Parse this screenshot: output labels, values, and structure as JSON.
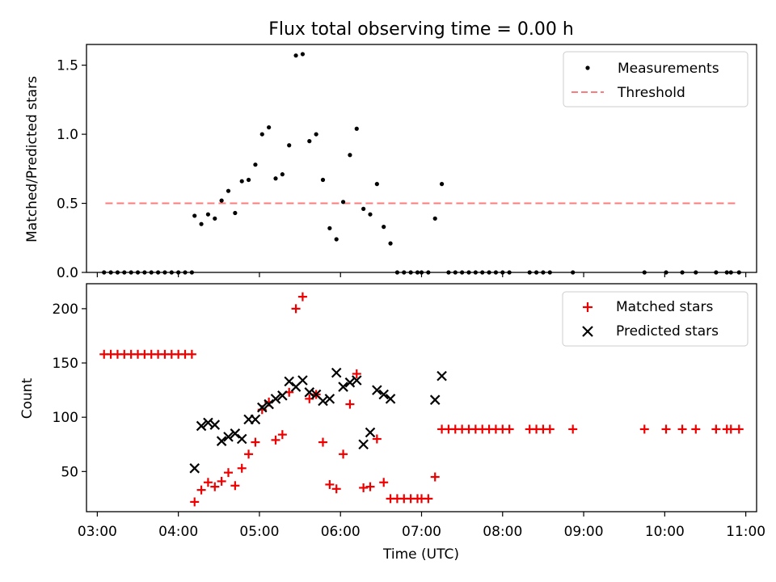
{
  "figure": {
    "title": "Flux total observing time = 0.00 h"
  },
  "chart_data": [
    {
      "type": "scatter",
      "ylabel": "Matched/Predicted stars",
      "xlabel": "",
      "xlim": [
        "03:00",
        "11:00"
      ],
      "ylim": [
        0,
        1.65
      ],
      "yticks": [
        0.0,
        0.5,
        1.0,
        1.5
      ],
      "ytick_labels": [
        "0.0",
        "0.5",
        "1.0",
        "1.5"
      ],
      "legend": {
        "placement": "top-right",
        "entries": [
          "Measurements",
          "Threshold"
        ]
      },
      "colors": {
        "measurements": "#000000",
        "threshold": "#ff7b7b"
      },
      "series": [
        {
          "name": "Measurements",
          "marker": "dot",
          "points": [
            [
              "03:05",
              0
            ],
            [
              "03:10",
              0
            ],
            [
              "03:15",
              0
            ],
            [
              "03:20",
              0
            ],
            [
              "03:25",
              0
            ],
            [
              "03:30",
              0
            ],
            [
              "03:35",
              0
            ],
            [
              "03:40",
              0
            ],
            [
              "03:45",
              0
            ],
            [
              "03:50",
              0
            ],
            [
              "03:55",
              0
            ],
            [
              "04:00",
              0
            ],
            [
              "04:05",
              0
            ],
            [
              "04:10",
              0
            ],
            [
              "04:12",
              0.41
            ],
            [
              "04:17",
              0.35
            ],
            [
              "04:22",
              0.42
            ],
            [
              "04:27",
              0.39
            ],
            [
              "04:32",
              0.52
            ],
            [
              "04:37",
              0.59
            ],
            [
              "04:42",
              0.43
            ],
            [
              "04:47",
              0.66
            ],
            [
              "04:52",
              0.67
            ],
            [
              "04:57",
              0.78
            ],
            [
              "05:02",
              1.0
            ],
            [
              "05:07",
              1.05
            ],
            [
              "05:12",
              0.68
            ],
            [
              "05:17",
              0.71
            ],
            [
              "05:22",
              0.92
            ],
            [
              "05:27",
              1.57
            ],
            [
              "05:32",
              1.58
            ],
            [
              "05:37",
              0.95
            ],
            [
              "05:42",
              1.0
            ],
            [
              "05:47",
              0.67
            ],
            [
              "05:52",
              0.32
            ],
            [
              "05:57",
              0.24
            ],
            [
              "06:02",
              0.51
            ],
            [
              "06:07",
              0.85
            ],
            [
              "06:12",
              1.04
            ],
            [
              "06:17",
              0.46
            ],
            [
              "06:22",
              0.42
            ],
            [
              "06:27",
              0.64
            ],
            [
              "06:32",
              0.33
            ],
            [
              "06:37",
              0.21
            ],
            [
              "06:42",
              0
            ],
            [
              "06:47",
              0
            ],
            [
              "06:52",
              0
            ],
            [
              "06:57",
              0
            ],
            [
              "07:00",
              0
            ],
            [
              "07:05",
              0
            ],
            [
              "07:10",
              0.39
            ],
            [
              "07:15",
              0.64
            ],
            [
              "07:20",
              0
            ],
            [
              "07:25",
              0
            ],
            [
              "07:30",
              0
            ],
            [
              "07:35",
              0
            ],
            [
              "07:40",
              0
            ],
            [
              "07:45",
              0
            ],
            [
              "07:50",
              0
            ],
            [
              "07:55",
              0
            ],
            [
              "08:00",
              0
            ],
            [
              "08:05",
              0
            ],
            [
              "08:20",
              0
            ],
            [
              "08:25",
              0
            ],
            [
              "08:30",
              0
            ],
            [
              "08:35",
              0
            ],
            [
              "08:52",
              0
            ],
            [
              "09:45",
              0
            ],
            [
              "10:01",
              0
            ],
            [
              "10:13",
              0
            ],
            [
              "10:23",
              0
            ],
            [
              "10:38",
              0
            ],
            [
              "10:46",
              0
            ],
            [
              "10:49",
              0
            ],
            [
              "10:55",
              0
            ]
          ]
        },
        {
          "name": "Threshold",
          "style": "dashed",
          "points": [
            [
              "03:06",
              0.5
            ],
            [
              "10:55",
              0.5
            ]
          ]
        }
      ]
    },
    {
      "type": "scatter",
      "xlabel": "Time (UTC)",
      "ylabel": "Count",
      "xlim": [
        "03:00",
        "11:00"
      ],
      "ylim": [
        13,
        223
      ],
      "yticks": [
        50,
        100,
        150,
        200
      ],
      "ytick_labels": [
        "50",
        "100",
        "150",
        "200"
      ],
      "xticks": [
        "03:00",
        "04:00",
        "05:00",
        "06:00",
        "07:00",
        "08:00",
        "09:00",
        "10:00",
        "11:00"
      ],
      "legend": {
        "placement": "top-right",
        "entries": [
          "Matched stars",
          "Predicted stars"
        ]
      },
      "colors": {
        "matched": "#ee0000",
        "predicted": "#000000"
      },
      "series": [
        {
          "name": "Matched stars",
          "marker": "plus",
          "points": [
            [
              "03:05",
              158
            ],
            [
              "03:10",
              158
            ],
            [
              "03:15",
              158
            ],
            [
              "03:20",
              158
            ],
            [
              "03:25",
              158
            ],
            [
              "03:30",
              158
            ],
            [
              "03:35",
              158
            ],
            [
              "03:40",
              158
            ],
            [
              "03:45",
              158
            ],
            [
              "03:50",
              158
            ],
            [
              "03:55",
              158
            ],
            [
              "04:00",
              158
            ],
            [
              "04:05",
              158
            ],
            [
              "04:10",
              158
            ],
            [
              "04:12",
              22
            ],
            [
              "04:17",
              33
            ],
            [
              "04:22",
              40
            ],
            [
              "04:27",
              36
            ],
            [
              "04:32",
              41
            ],
            [
              "04:37",
              49
            ],
            [
              "04:42",
              37
            ],
            [
              "04:47",
              53
            ],
            [
              "04:52",
              66
            ],
            [
              "04:57",
              77
            ],
            [
              "05:02",
              107
            ],
            [
              "05:07",
              114
            ],
            [
              "05:12",
              79
            ],
            [
              "05:17",
              84
            ],
            [
              "05:22",
              123
            ],
            [
              "05:27",
              200
            ],
            [
              "05:32",
              211
            ],
            [
              "05:37",
              117
            ],
            [
              "05:42",
              121
            ],
            [
              "05:47",
              77
            ],
            [
              "05:52",
              38
            ],
            [
              "05:57",
              34
            ],
            [
              "06:02",
              66
            ],
            [
              "06:07",
              112
            ],
            [
              "06:12",
              140
            ],
            [
              "06:17",
              35
            ],
            [
              "06:22",
              36
            ],
            [
              "06:27",
              80
            ],
            [
              "06:32",
              40
            ],
            [
              "06:37",
              25
            ],
            [
              "06:42",
              25
            ],
            [
              "06:47",
              25
            ],
            [
              "06:52",
              25
            ],
            [
              "06:57",
              25
            ],
            [
              "07:00",
              25
            ],
            [
              "07:05",
              25
            ],
            [
              "07:10",
              45
            ],
            [
              "07:15",
              89
            ],
            [
              "07:20",
              89
            ],
            [
              "07:25",
              89
            ],
            [
              "07:30",
              89
            ],
            [
              "07:35",
              89
            ],
            [
              "07:40",
              89
            ],
            [
              "07:45",
              89
            ],
            [
              "07:50",
              89
            ],
            [
              "07:55",
              89
            ],
            [
              "08:00",
              89
            ],
            [
              "08:05",
              89
            ],
            [
              "08:20",
              89
            ],
            [
              "08:25",
              89
            ],
            [
              "08:30",
              89
            ],
            [
              "08:35",
              89
            ],
            [
              "08:52",
              89
            ],
            [
              "09:45",
              89
            ],
            [
              "10:01",
              89
            ],
            [
              "10:13",
              89
            ],
            [
              "10:23",
              89
            ],
            [
              "10:38",
              89
            ],
            [
              "10:46",
              89
            ],
            [
              "10:49",
              89
            ],
            [
              "10:55",
              89
            ]
          ]
        },
        {
          "name": "Predicted stars",
          "marker": "x",
          "points": [
            [
              "04:12",
              53
            ],
            [
              "04:17",
              92
            ],
            [
              "04:22",
              95
            ],
            [
              "04:27",
              93
            ],
            [
              "04:32",
              78
            ],
            [
              "04:37",
              82
            ],
            [
              "04:42",
              85
            ],
            [
              "04:47",
              80
            ],
            [
              "04:52",
              98
            ],
            [
              "04:57",
              98
            ],
            [
              "05:02",
              109
            ],
            [
              "05:07",
              112
            ],
            [
              "05:12",
              117
            ],
            [
              "05:17",
              120
            ],
            [
              "05:22",
              133
            ],
            [
              "05:27",
              128
            ],
            [
              "05:32",
              134
            ],
            [
              "05:37",
              123
            ],
            [
              "05:42",
              121
            ],
            [
              "05:47",
              115
            ],
            [
              "05:52",
              117
            ],
            [
              "05:57",
              141
            ],
            [
              "06:02",
              128
            ],
            [
              "06:07",
              132
            ],
            [
              "06:12",
              134
            ],
            [
              "06:17",
              75
            ],
            [
              "06:22",
              86
            ],
            [
              "06:27",
              125
            ],
            [
              "06:32",
              121
            ],
            [
              "06:37",
              117
            ],
            [
              "07:10",
              116
            ],
            [
              "07:15",
              138
            ]
          ]
        }
      ]
    }
  ]
}
